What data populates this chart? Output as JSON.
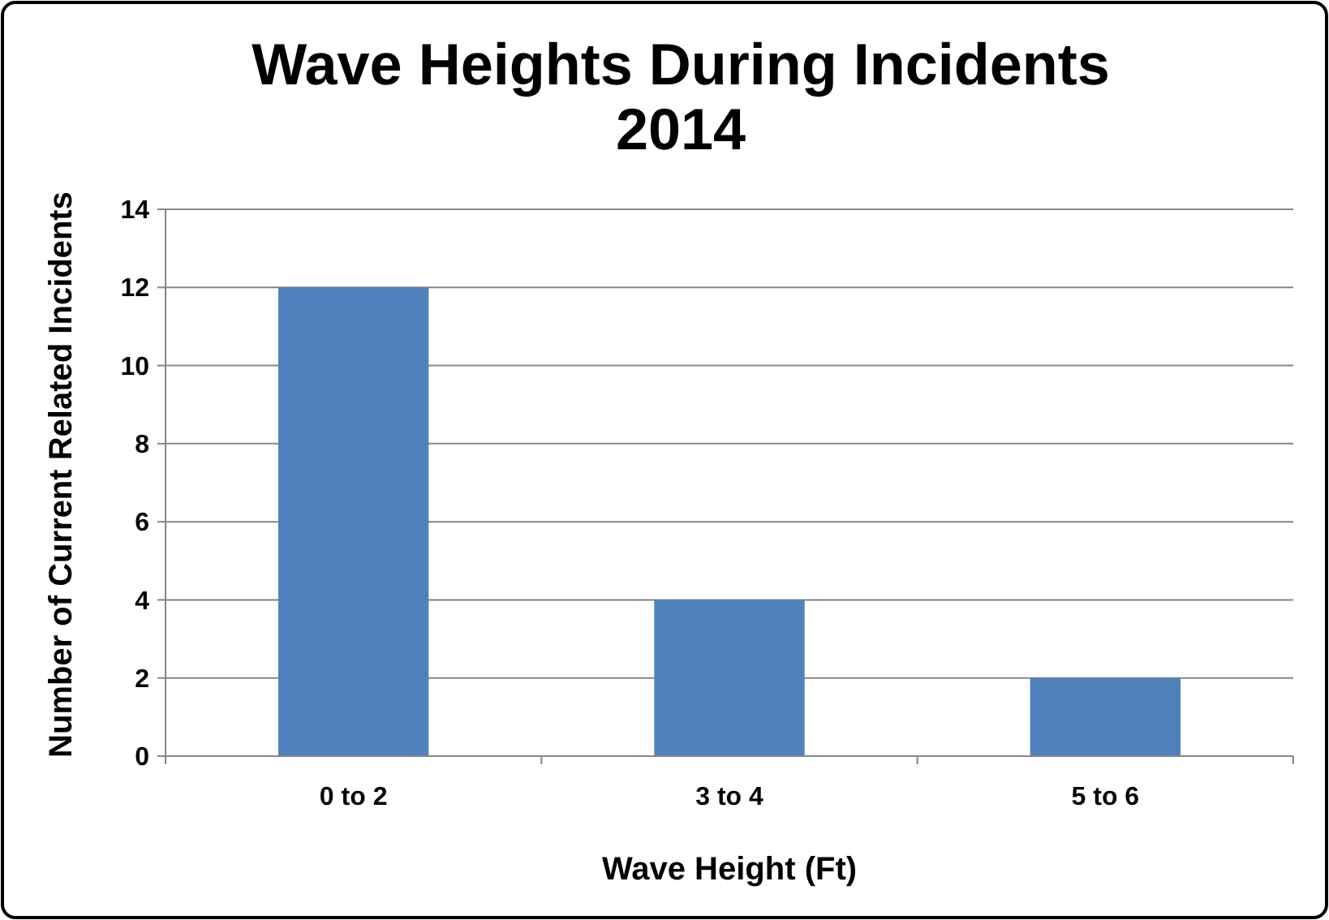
{
  "chart_data": {
    "type": "bar",
    "title": "Wave Heights During Incidents\n2014",
    "xlabel": "Wave Height (Ft)",
    "ylabel": "Number of Current Related Incidents",
    "categories": [
      "0 to 2",
      "3 to 4",
      "5 to 6"
    ],
    "values": [
      12,
      4,
      2
    ],
    "color": "#4f81bd",
    "ylim": [
      0,
      14
    ],
    "yticks": [
      0,
      2,
      4,
      6,
      8,
      10,
      12,
      14
    ],
    "grid": "y"
  }
}
